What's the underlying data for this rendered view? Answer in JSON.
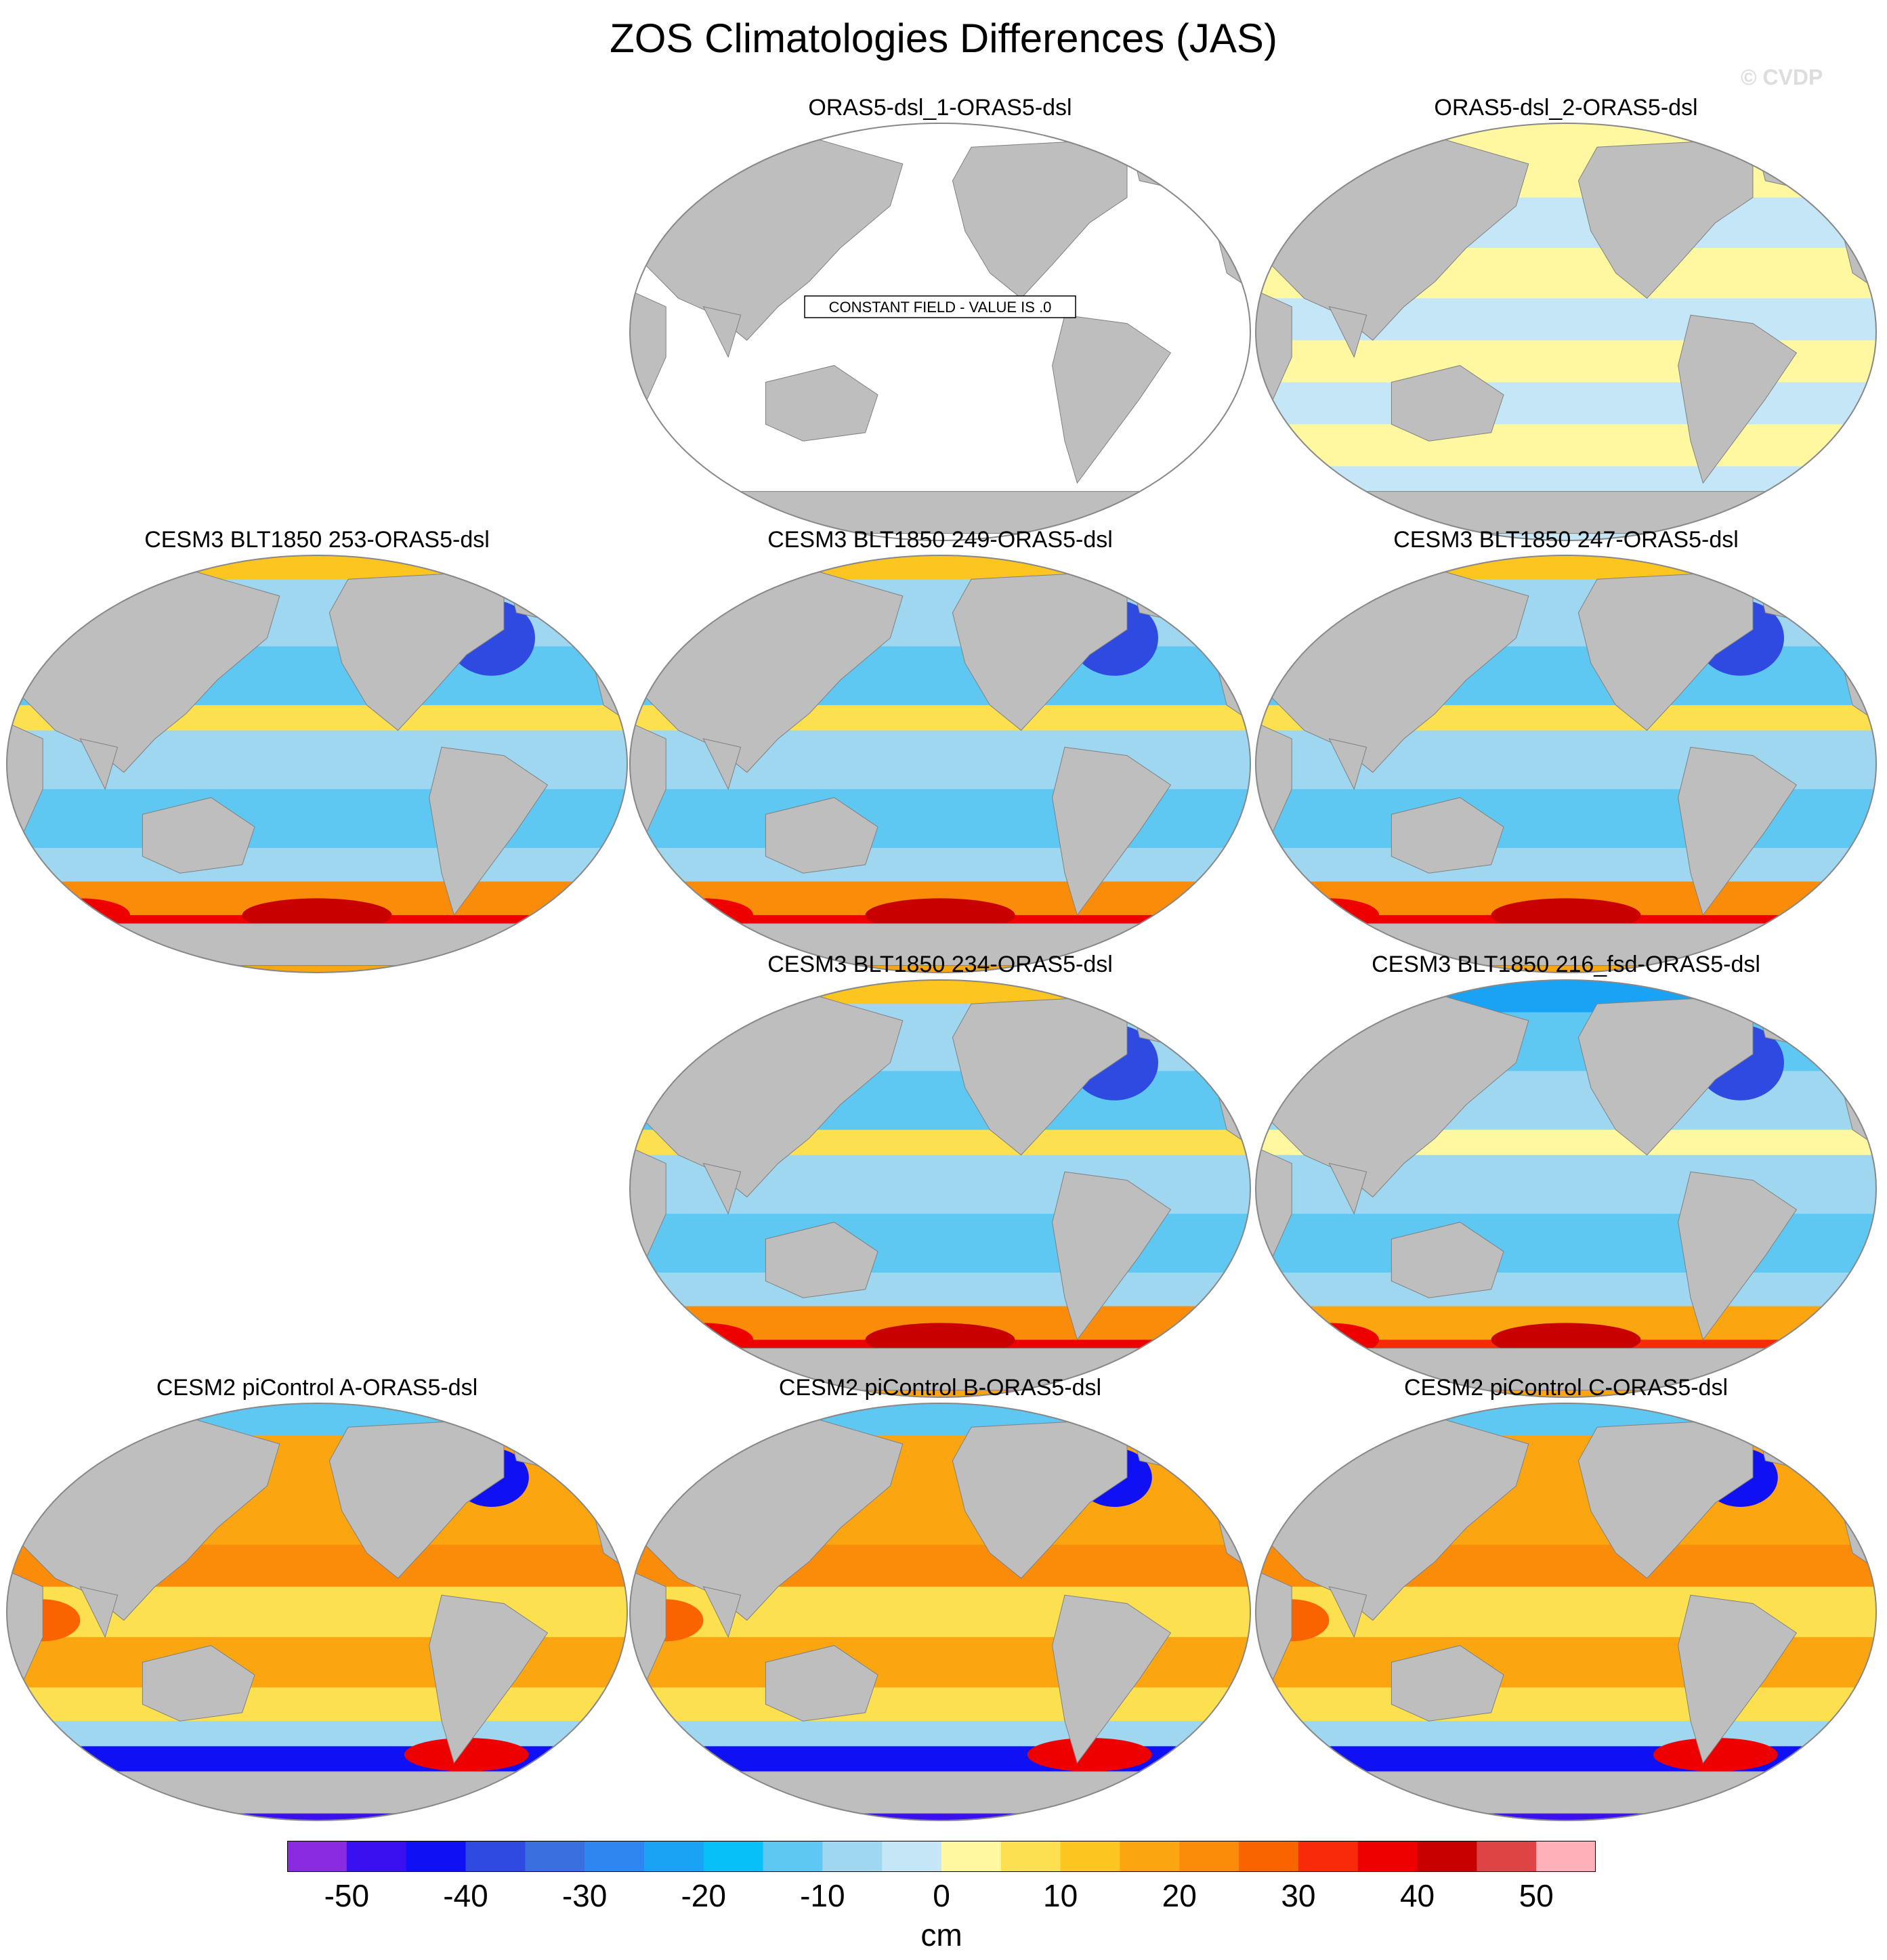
{
  "title": "ZOS Climatologies Differences (JAS)",
  "watermark": "© CVDP",
  "panels": [
    {
      "label": "ORAS5-dsl_1-ORAS5-dsl",
      "pattern": "constant",
      "annotation": "CONSTANT FIELD - VALUE IS .0"
    },
    {
      "label": "ORAS5-dsl_2-ORAS5-dsl",
      "pattern": "near-zero"
    },
    {
      "label": "CESM3 BLT1850 253-ORAS5-dsl",
      "pattern": "cesm3"
    },
    {
      "label": "CESM3 BLT1850 249-ORAS5-dsl",
      "pattern": "cesm3"
    },
    {
      "label": "CESM3 BLT1850 247-ORAS5-dsl",
      "pattern": "cesm3"
    },
    {
      "label": "CESM3 BLT1850 234-ORAS5-dsl",
      "pattern": "cesm3"
    },
    {
      "label": "CESM3 BLT1850 216_fsd-ORAS5-dsl",
      "pattern": "cesm3-fsd"
    },
    {
      "label": "CESM2 piControl A-ORAS5-dsl",
      "pattern": "cesm2"
    },
    {
      "label": "CESM2 piControl B-ORAS5-dsl",
      "pattern": "cesm2"
    },
    {
      "label": "CESM2 piControl C-ORAS5-dsl",
      "pattern": "cesm2"
    }
  ],
  "colorbar": {
    "units": "cm",
    "tick_labels": [
      "-50",
      "-40",
      "-30",
      "-20",
      "-10",
      "0",
      "10",
      "20",
      "30",
      "40",
      "50"
    ],
    "colors": [
      "#8a2be2",
      "#3b10f0",
      "#1010f5",
      "#2f4ae0",
      "#3a6fe0",
      "#2f86f0",
      "#1aa3f5",
      "#08c0f8",
      "#5ec8f2",
      "#9fd6f0",
      "#c4e6f6",
      "#fff8a0",
      "#fde050",
      "#fcc520",
      "#fba610",
      "#fb8c0a",
      "#fa6400",
      "#f82a0a",
      "#ee0000",
      "#c80000",
      "#df4444",
      "#ffb0b8"
    ]
  },
  "land_color": "#bebebe"
}
